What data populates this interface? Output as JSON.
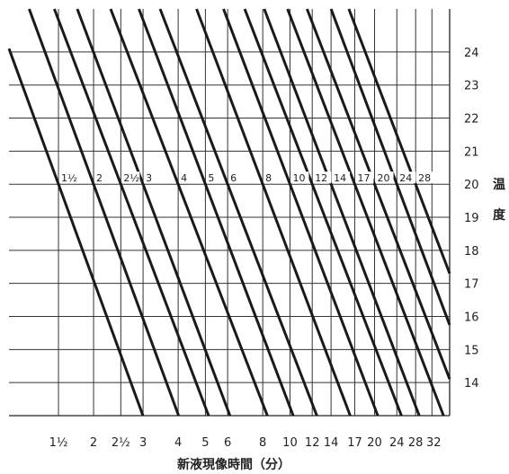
{
  "chart_data": {
    "type": "line",
    "title": "",
    "xlabel": "新液現像時間（分）",
    "ylabel": "温度",
    "x_scale": "log",
    "grid": true,
    "xlim": [
      1.0,
      37.0
    ],
    "ylim": [
      13.0,
      25.3
    ],
    "x_ticks": [
      {
        "value": 1.5,
        "label": "1½"
      },
      {
        "value": 2,
        "label": "2"
      },
      {
        "value": 2.5,
        "label": "2½"
      },
      {
        "value": 3,
        "label": "3"
      },
      {
        "value": 4,
        "label": "4"
      },
      {
        "value": 5,
        "label": "5"
      },
      {
        "value": 6,
        "label": "6"
      },
      {
        "value": 8,
        "label": "8"
      },
      {
        "value": 10,
        "label": "10"
      },
      {
        "value": 12,
        "label": "12"
      },
      {
        "value": 14,
        "label": "14"
      },
      {
        "value": 17,
        "label": "17"
      },
      {
        "value": 20,
        "label": "20"
      },
      {
        "value": 24,
        "label": "24"
      },
      {
        "value": 28,
        "label": "28"
      },
      {
        "value": 32,
        "label": "32"
      }
    ],
    "y_ticks": [
      14,
      15,
      16,
      17,
      18,
      19,
      20,
      21,
      22,
      23,
      24
    ],
    "reference_temperature": 20,
    "curve_labels": [
      "1½",
      "2",
      "2½",
      "3",
      "4",
      "5",
      "6",
      "8",
      "10",
      "12",
      "14",
      "17",
      "20",
      "24",
      "28"
    ],
    "series": [
      {
        "x": [
          1.5,
          1.0
        ],
        "y": [
          20,
          24.1
        ]
      },
      {
        "x": [
          2,
          1.18
        ],
        "y": [
          20,
          25.3
        ]
      },
      {
        "x": [
          2.5,
          1.45
        ],
        "y": [
          20,
          25.3
        ]
      },
      {
        "x": [
          3,
          1.75
        ],
        "y": [
          20,
          25.3
        ]
      },
      {
        "x": [
          4,
          2.3
        ],
        "y": [
          20,
          25.3
        ]
      },
      {
        "x": [
          5,
          2.9
        ],
        "y": [
          20,
          25.3
        ]
      },
      {
        "x": [
          6,
          3.45
        ],
        "y": [
          20,
          25.3
        ]
      },
      {
        "x": [
          8,
          4.65
        ],
        "y": [
          20,
          25.3
        ]
      },
      {
        "x": [
          10,
          5.8
        ],
        "y": [
          20,
          25.3
        ]
      },
      {
        "x": [
          12,
          6.9
        ],
        "y": [
          20,
          25.3
        ]
      },
      {
        "x": [
          14,
          8.1
        ],
        "y": [
          20,
          25.3
        ]
      },
      {
        "x": [
          17,
          9.8
        ],
        "y": [
          20,
          25.3
        ]
      },
      {
        "x": [
          20,
          11.5
        ],
        "y": [
          20,
          25.3
        ]
      },
      {
        "x": [
          24,
          14
        ],
        "y": [
          20,
          25.3
        ]
      },
      {
        "x": [
          28,
          16.2
        ],
        "y": [
          20,
          25.3
        ]
      }
    ]
  }
}
